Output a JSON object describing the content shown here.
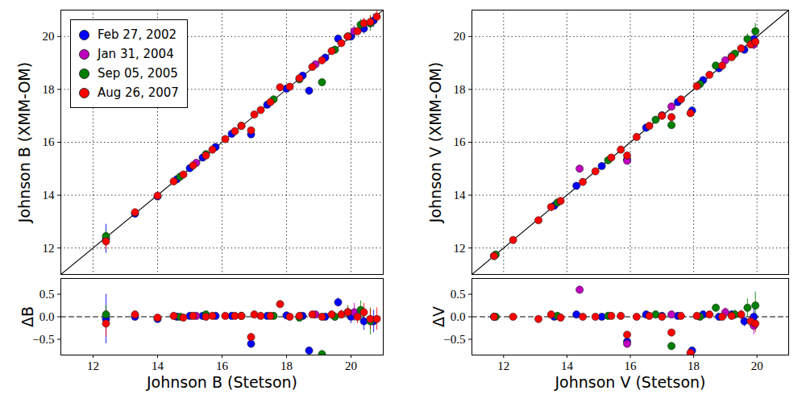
{
  "chart_data": [
    {
      "type": "scatter",
      "y_label": "Johnson B (XMM-OM)",
      "xlim": [
        11,
        21
      ],
      "ylim": [
        11,
        21
      ],
      "xticks": [
        12,
        14,
        16,
        18,
        20
      ],
      "yticks": [
        12,
        14,
        16,
        18,
        20
      ],
      "grid": true,
      "tick_labels": "y",
      "legend": "top-left",
      "series": [
        {
          "type": "line",
          "color": "#000000",
          "line_style": "solid",
          "x": [
            11,
            21
          ],
          "values": [
            11,
            21
          ]
        },
        {
          "name": "Feb 27, 2002",
          "color": "#0000ff",
          "marker": "circle",
          "x": [
            12.4,
            13.3,
            14.0,
            14.6,
            15.0,
            15.4,
            15.8,
            16.3,
            16.9,
            17.4,
            18.0,
            18.5,
            18.7,
            19.2,
            19.6,
            20.0,
            20.4,
            20.7
          ],
          "values": [
            12.35,
            13.3,
            13.95,
            14.6,
            15.02,
            15.42,
            15.82,
            16.32,
            16.3,
            17.42,
            18.03,
            18.52,
            17.95,
            19.2,
            19.92,
            20.0,
            20.3,
            20.6
          ],
          "errors": [
            0.55,
            0.03,
            0.03,
            0.03,
            0.03,
            0.03,
            0.03,
            0.03,
            0.04,
            0.04,
            0.05,
            0.05,
            0.05,
            0.08,
            0.1,
            0.15,
            0.2,
            0.25
          ]
        },
        {
          "name": "Jan 31, 2004",
          "color": "#bf00bf",
          "marker": "circle",
          "x": [
            15.2,
            18.9,
            20.1
          ],
          "values": [
            15.22,
            18.95,
            20.2
          ],
          "errors": [
            0.03,
            0.06,
            0.2
          ]
        },
        {
          "name": "Sep 05, 2005",
          "color": "#008000",
          "marker": "circle",
          "x": [
            12.4,
            14.7,
            15.5,
            16.6,
            17.6,
            18.4,
            19.1,
            19.5,
            19.9,
            20.3,
            20.6
          ],
          "values": [
            12.45,
            14.7,
            15.55,
            16.62,
            17.62,
            18.38,
            18.27,
            19.5,
            20.0,
            20.45,
            20.5
          ],
          "errors": [
            0.2,
            0.03,
            0.03,
            0.03,
            0.04,
            0.05,
            0.06,
            0.1,
            0.15,
            0.2,
            0.3
          ]
        },
        {
          "name": "Aug 26, 2007",
          "color": "#ff0000",
          "marker": "circle",
          "x": [
            12.4,
            13.3,
            14.0,
            14.5,
            14.8,
            15.1,
            15.5,
            15.7,
            16.1,
            16.4,
            16.6,
            16.9,
            17.0,
            17.2,
            17.5,
            17.8,
            18.1,
            18.4,
            18.8,
            19.1,
            19.4,
            19.7,
            19.9,
            20.2,
            20.4,
            20.6,
            20.8
          ],
          "values": [
            12.25,
            13.35,
            13.98,
            14.52,
            14.78,
            15.12,
            15.5,
            15.72,
            16.12,
            16.42,
            16.62,
            16.45,
            17.05,
            17.22,
            17.52,
            18.08,
            18.1,
            18.42,
            18.85,
            19.1,
            19.45,
            19.75,
            20.0,
            20.2,
            20.5,
            20.55,
            20.75
          ],
          "errors": [
            0.3,
            0.03,
            0.03,
            0.03,
            0.03,
            0.03,
            0.03,
            0.03,
            0.03,
            0.03,
            0.03,
            0.04,
            0.04,
            0.04,
            0.04,
            0.04,
            0.05,
            0.05,
            0.06,
            0.07,
            0.08,
            0.1,
            0.12,
            0.15,
            0.2,
            0.22,
            0.25
          ]
        }
      ]
    },
    {
      "type": "scatter",
      "x_label": "Johnson B (Stetson)",
      "y_label": "ΔB",
      "xlim": [
        11,
        21
      ],
      "ylim": [
        -0.85,
        0.85
      ],
      "xticks": [
        12,
        14,
        16,
        18,
        20
      ],
      "yticks": [
        {
          "value": -0.5,
          "label": "−0.5"
        },
        {
          "value": 0,
          "label": "0.0"
        },
        {
          "value": 0.5,
          "label": "0.5"
        }
      ],
      "grid": false,
      "series": [
        {
          "type": "line",
          "color": "#000000",
          "line_style": "dashed",
          "x": [
            11,
            21
          ],
          "values": [
            0,
            0
          ]
        },
        {
          "name": "Feb 27, 2002",
          "color": "#0000ff",
          "marker": "circle",
          "x": [
            12.4,
            13.3,
            14.0,
            14.6,
            15.0,
            15.4,
            15.8,
            16.3,
            16.9,
            17.4,
            18.0,
            18.5,
            18.7,
            19.2,
            19.6,
            20.0,
            20.4,
            20.7
          ],
          "values": [
            -0.05,
            0.0,
            -0.05,
            0.0,
            0.02,
            0.02,
            0.02,
            0.02,
            -0.6,
            0.02,
            0.03,
            0.02,
            -0.75,
            0.0,
            0.32,
            0.0,
            -0.1,
            -0.1
          ],
          "errors": [
            0.55,
            0.03,
            0.03,
            0.03,
            0.03,
            0.03,
            0.03,
            0.03,
            0.04,
            0.04,
            0.05,
            0.05,
            0.05,
            0.08,
            0.1,
            0.15,
            0.2,
            0.25
          ]
        },
        {
          "name": "Jan 31, 2004",
          "color": "#bf00bf",
          "marker": "circle",
          "x": [
            15.2,
            18.9,
            20.1
          ],
          "values": [
            0.02,
            0.05,
            0.1
          ],
          "errors": [
            0.03,
            0.06,
            0.2
          ]
        },
        {
          "name": "Sep 05, 2005",
          "color": "#008000",
          "marker": "circle",
          "x": [
            12.4,
            14.7,
            15.5,
            16.6,
            17.6,
            18.4,
            19.1,
            19.5,
            19.9,
            20.3,
            20.6
          ],
          "values": [
            0.05,
            0.0,
            0.05,
            0.02,
            0.02,
            -0.02,
            -0.83,
            0.0,
            0.1,
            0.15,
            -0.1
          ],
          "errors": [
            0.2,
            0.03,
            0.03,
            0.03,
            0.04,
            0.05,
            0.06,
            0.1,
            0.15,
            0.2,
            0.3
          ]
        },
        {
          "name": "Aug 26, 2007",
          "color": "#ff0000",
          "marker": "circle",
          "x": [
            12.4,
            13.3,
            14.0,
            14.5,
            14.8,
            15.1,
            15.5,
            15.7,
            16.1,
            16.4,
            16.6,
            16.9,
            17.0,
            17.2,
            17.5,
            17.8,
            18.1,
            18.4,
            18.8,
            19.1,
            19.4,
            19.7,
            19.9,
            20.2,
            20.4,
            20.6,
            20.8
          ],
          "values": [
            -0.15,
            0.05,
            -0.02,
            0.02,
            -0.02,
            0.02,
            0.0,
            0.02,
            0.02,
            0.02,
            0.02,
            -0.45,
            0.05,
            0.02,
            0.02,
            0.28,
            0.0,
            0.02,
            0.05,
            0.0,
            0.05,
            0.05,
            0.1,
            0.0,
            0.1,
            -0.05,
            -0.05
          ],
          "errors": [
            0.3,
            0.03,
            0.03,
            0.03,
            0.03,
            0.03,
            0.03,
            0.03,
            0.03,
            0.03,
            0.03,
            0.04,
            0.04,
            0.04,
            0.04,
            0.04,
            0.05,
            0.05,
            0.06,
            0.07,
            0.08,
            0.1,
            0.12,
            0.15,
            0.2,
            0.22,
            0.25
          ]
        }
      ]
    },
    {
      "type": "scatter",
      "y_label": "Johnson V (XMM-OM)",
      "xlim": [
        11,
        21
      ],
      "ylim": [
        11,
        21
      ],
      "xticks": [
        12,
        14,
        16,
        18,
        20
      ],
      "yticks": [
        12,
        14,
        16,
        18,
        20
      ],
      "grid": true,
      "tick_labels": "y",
      "series": [
        {
          "type": "line",
          "color": "#000000",
          "line_style": "solid",
          "x": [
            11,
            21
          ],
          "values": [
            11,
            21
          ]
        },
        {
          "name": "Feb 27, 2002",
          "color": "#0000ff",
          "marker": "circle",
          "x": [
            11.7,
            13.6,
            14.3,
            15.1,
            15.9,
            16.5,
            17.0,
            17.5,
            17.95,
            18.3,
            18.8,
            19.2,
            19.6,
            19.9
          ],
          "values": [
            11.7,
            13.6,
            14.35,
            15.1,
            15.35,
            16.55,
            17.02,
            17.52,
            17.2,
            18.35,
            18.8,
            19.25,
            19.5,
            19.9
          ],
          "errors": [
            0.02,
            0.03,
            0.03,
            0.03,
            0.03,
            0.03,
            0.04,
            0.04,
            0.05,
            0.05,
            0.06,
            0.08,
            0.12,
            0.18
          ]
        },
        {
          "name": "Jan 31, 2004",
          "color": "#bf00bf",
          "marker": "circle",
          "x": [
            14.4,
            15.9,
            17.3,
            19.0,
            19.9
          ],
          "values": [
            15.0,
            15.3,
            17.35,
            19.1,
            19.7
          ],
          "errors": [
            0.04,
            0.04,
            0.05,
            0.1,
            0.2
          ]
        },
        {
          "name": "Sep 05, 2005",
          "color": "#008000",
          "marker": "circle",
          "x": [
            11.75,
            13.7,
            15.3,
            16.8,
            17.3,
            18.2,
            18.7,
            19.3,
            19.7,
            19.95
          ],
          "values": [
            11.75,
            13.72,
            15.32,
            16.85,
            16.65,
            18.2,
            18.9,
            19.35,
            19.9,
            20.2
          ],
          "errors": [
            0.02,
            0.03,
            0.03,
            0.04,
            0.05,
            0.05,
            0.08,
            0.1,
            0.2,
            0.3
          ]
        },
        {
          "name": "Aug 26, 2007",
          "color": "#ff0000",
          "marker": "circle",
          "x": [
            11.7,
            12.3,
            13.1,
            13.5,
            13.8,
            14.5,
            14.9,
            15.4,
            15.7,
            15.9,
            16.2,
            16.6,
            17.0,
            17.3,
            17.6,
            17.9,
            18.1,
            18.5,
            18.9,
            19.2,
            19.5,
            19.8,
            19.95
          ],
          "values": [
            11.7,
            12.3,
            13.05,
            13.55,
            13.78,
            14.5,
            14.9,
            15.42,
            15.72,
            15.5,
            16.2,
            16.62,
            17.0,
            16.95,
            17.62,
            17.1,
            18.12,
            18.55,
            18.9,
            19.22,
            19.55,
            19.7,
            19.8
          ],
          "errors": [
            0.02,
            0.02,
            0.02,
            0.03,
            0.03,
            0.03,
            0.03,
            0.03,
            0.03,
            0.03,
            0.03,
            0.04,
            0.04,
            0.05,
            0.04,
            0.05,
            0.05,
            0.06,
            0.07,
            0.08,
            0.1,
            0.15,
            0.2
          ]
        }
      ]
    },
    {
      "type": "scatter",
      "x_label": "Johnson V (Stetson)",
      "y_label": "ΔV",
      "xlim": [
        11,
        21
      ],
      "ylim": [
        -0.85,
        0.85
      ],
      "xticks": [
        12,
        14,
        16,
        18,
        20
      ],
      "yticks": [
        {
          "value": -0.5,
          "label": "−0.5"
        },
        {
          "value": 0,
          "label": "0.0"
        },
        {
          "value": 0.5,
          "label": "0.5"
        }
      ],
      "grid": false,
      "series": [
        {
          "type": "line",
          "color": "#000000",
          "line_style": "dashed",
          "x": [
            11,
            21
          ],
          "values": [
            0,
            0
          ]
        },
        {
          "name": "Feb 27, 2002",
          "color": "#0000ff",
          "marker": "circle",
          "x": [
            11.7,
            13.6,
            14.3,
            15.1,
            15.9,
            16.5,
            17.0,
            17.5,
            17.95,
            18.3,
            18.8,
            19.2,
            19.6,
            19.9
          ],
          "values": [
            0.0,
            0.0,
            0.05,
            0.0,
            -0.55,
            0.05,
            0.02,
            0.02,
            -0.75,
            0.05,
            0.0,
            0.05,
            -0.1,
            0.0
          ],
          "errors": [
            0.02,
            0.03,
            0.03,
            0.03,
            0.03,
            0.03,
            0.04,
            0.04,
            0.05,
            0.05,
            0.06,
            0.08,
            0.12,
            0.18
          ]
        },
        {
          "name": "Jan 31, 2004",
          "color": "#bf00bf",
          "marker": "circle",
          "x": [
            14.4,
            15.9,
            17.3,
            19.0,
            19.9
          ],
          "values": [
            0.6,
            -0.6,
            0.05,
            0.1,
            -0.2
          ],
          "errors": [
            0.04,
            0.04,
            0.05,
            0.1,
            0.2
          ]
        },
        {
          "name": "Sep 05, 2005",
          "color": "#008000",
          "marker": "circle",
          "x": [
            11.75,
            13.7,
            15.3,
            16.8,
            17.3,
            18.2,
            18.7,
            19.3,
            19.7,
            19.95
          ],
          "values": [
            0.0,
            0.02,
            0.02,
            0.05,
            -0.65,
            0.0,
            0.2,
            0.05,
            0.2,
            0.25
          ],
          "errors": [
            0.02,
            0.03,
            0.03,
            0.04,
            0.05,
            0.05,
            0.08,
            0.1,
            0.2,
            0.3
          ]
        },
        {
          "name": "Aug 26, 2007",
          "color": "#ff0000",
          "marker": "circle",
          "x": [
            11.7,
            12.3,
            13.1,
            13.5,
            13.8,
            14.5,
            14.9,
            15.4,
            15.7,
            15.9,
            16.2,
            16.6,
            17.0,
            17.3,
            17.6,
            17.9,
            18.1,
            18.5,
            18.9,
            19.2,
            19.5,
            19.8,
            19.95
          ],
          "values": [
            0.0,
            0.0,
            -0.05,
            0.05,
            -0.02,
            0.0,
            0.0,
            0.02,
            0.02,
            -0.4,
            0.0,
            0.02,
            0.0,
            -0.35,
            0.02,
            -0.8,
            0.02,
            0.05,
            0.0,
            0.02,
            0.05,
            -0.1,
            -0.15
          ],
          "errors": [
            0.02,
            0.02,
            0.02,
            0.03,
            0.03,
            0.03,
            0.03,
            0.03,
            0.03,
            0.03,
            0.03,
            0.04,
            0.04,
            0.05,
            0.04,
            0.05,
            0.05,
            0.06,
            0.07,
            0.08,
            0.1,
            0.15,
            0.2
          ]
        }
      ]
    }
  ]
}
